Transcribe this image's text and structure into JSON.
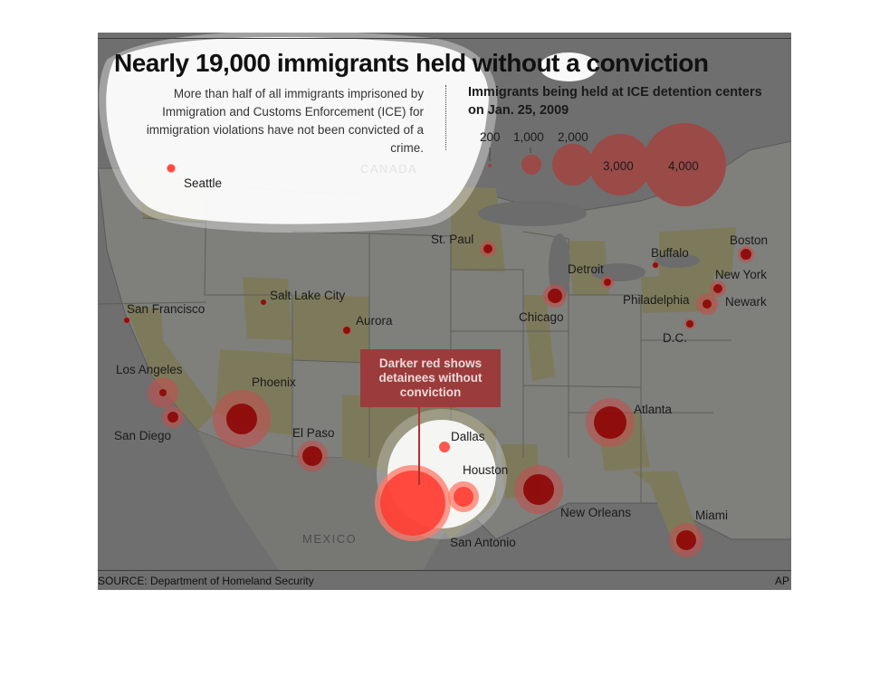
{
  "graphic": {
    "title": "Nearly 19,000 immigrants held without a conviction",
    "intro": "More than half of all immigrants imprisoned by Immigration and Customs Enforcement (ICE) for immigration violations have not been convicted of a crime.",
    "legend_title": "Immigrants being held at ICE detention centers on Jan. 25, 2009",
    "legend_sizes": [
      "200",
      "1,000",
      "2,000",
      "3,000",
      "4,000"
    ],
    "callout": "Darker red shows detainees without conviction",
    "country_canada": "CANADA",
    "country_mexico": "MEXICO",
    "source": "SOURCE: Department of Homeland Security",
    "credit": "AP",
    "colors": {
      "total_circle": "#c0504d",
      "no_conviction": "#8b0000",
      "highlight": "#ff3b30"
    }
  },
  "cities": [
    {
      "name": "Seattle"
    },
    {
      "name": "San Francisco"
    },
    {
      "name": "Salt Lake City"
    },
    {
      "name": "Aurora"
    },
    {
      "name": "Los Angeles"
    },
    {
      "name": "San Diego"
    },
    {
      "name": "Phoenix"
    },
    {
      "name": "El Paso"
    },
    {
      "name": "St. Paul"
    },
    {
      "name": "Chicago"
    },
    {
      "name": "Detroit"
    },
    {
      "name": "Buffalo"
    },
    {
      "name": "Boston"
    },
    {
      "name": "New York"
    },
    {
      "name": "Newark"
    },
    {
      "name": "Philadelphia"
    },
    {
      "name": "D.C."
    },
    {
      "name": "Atlanta"
    },
    {
      "name": "Miami"
    },
    {
      "name": "New Orleans"
    },
    {
      "name": "Dallas"
    },
    {
      "name": "Houston"
    },
    {
      "name": "San Antonio"
    }
  ]
}
